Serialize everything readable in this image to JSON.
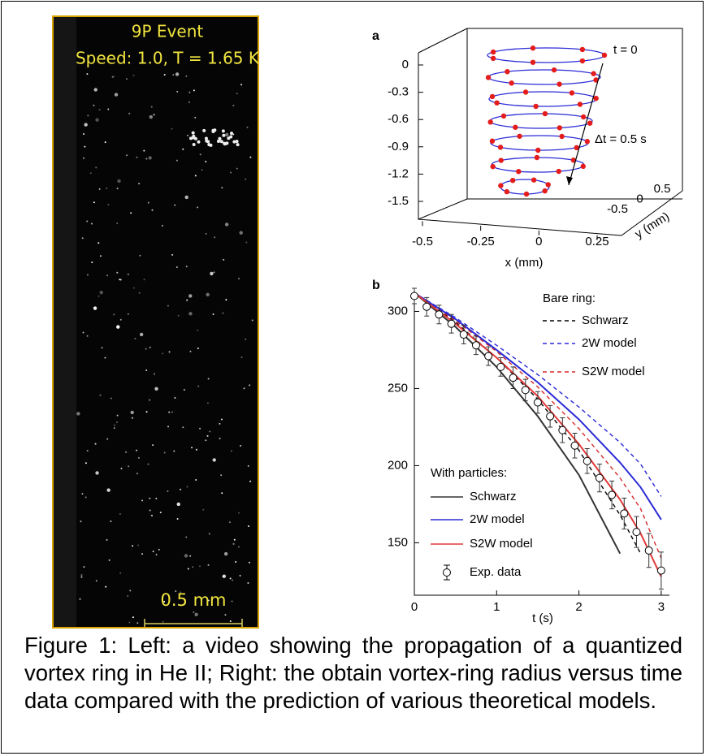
{
  "video": {
    "title": "9P Event",
    "subtitle": "Speed: 1.0, T = 1.65 K",
    "scale_label": "0.5 mm"
  },
  "panel_a": {
    "label": "a",
    "zticks": [
      0,
      -0.3,
      -0.6,
      -0.9,
      -1.2,
      -1.5
    ],
    "xticks": [
      -0.5,
      -0.25,
      0,
      0.25
    ],
    "yticks": [
      -0.5,
      0,
      0.5
    ],
    "xlabel": "x (mm)",
    "ylabel": "y (mm)",
    "annotation_start": "t = 0",
    "annotation_step": "Δt = 0.5 s"
  },
  "chart_data": {
    "type": "line",
    "label": "b",
    "xlabel": "t (s)",
    "x": [
      0,
      0.5,
      1,
      1.5,
      2,
      2.5,
      2.75,
      3
    ],
    "xlim": [
      0,
      3.1
    ],
    "ylim": [
      116,
      315
    ],
    "xticks": [
      0,
      1,
      2,
      3
    ],
    "yticks": [
      150,
      200,
      250,
      300
    ],
    "legend_groups": [
      "Bare ring:",
      "With particles:"
    ],
    "series": [
      {
        "name": "Schwarz",
        "color": "#000000",
        "dashed": true,
        "group": 0,
        "values": [
          312,
          293,
          270,
          243,
          210,
          168,
          143,
          null
        ]
      },
      {
        "name": "2W model",
        "color": "#2a2ad6",
        "dashed": true,
        "group": 0,
        "values": [
          312,
          296,
          278,
          259,
          238,
          215,
          201,
          180
        ]
      },
      {
        "name": "S2W model",
        "color": "#d62a2a",
        "dashed": true,
        "group": 0,
        "values": [
          312,
          294,
          274,
          251,
          224,
          192,
          172,
          140
        ]
      },
      {
        "name": "Schwarz",
        "color": "#333333",
        "dashed": false,
        "group": 1,
        "values": [
          312,
          290,
          264,
          232,
          194,
          143,
          null,
          null
        ]
      },
      {
        "name": "2W model",
        "color": "#2a2ad6",
        "dashed": false,
        "group": 1,
        "values": [
          312,
          295,
          275,
          254,
          230,
          202,
          186,
          165
        ]
      },
      {
        "name": "S2W model",
        "color": "#e23a3a",
        "dashed": false,
        "group": 1,
        "values": [
          312,
          292,
          270,
          245,
          214,
          178,
          156,
          128
        ]
      }
    ],
    "exp": {
      "name": "Exp. data",
      "color": "#000000",
      "x": [
        0,
        0.15,
        0.3,
        0.45,
        0.6,
        0.75,
        0.9,
        1.05,
        1.2,
        1.35,
        1.5,
        1.65,
        1.8,
        1.95,
        2.1,
        2.25,
        2.4,
        2.55,
        2.7,
        2.85,
        3.0
      ],
      "values": [
        310,
        303,
        298,
        292,
        285,
        278,
        271,
        264,
        257,
        249,
        241,
        232,
        223,
        213,
        203,
        192,
        181,
        169,
        157,
        145,
        132
      ],
      "errors": [
        5,
        6,
        6,
        6,
        6,
        6,
        6,
        6,
        7,
        7,
        7,
        7,
        8,
        8,
        8,
        9,
        9,
        10,
        10,
        11,
        12
      ]
    }
  },
  "caption": "Figure 1: Left: a video showing the propagation of a quantized vortex ring in He II; Right: the obtain vortex-ring radius versus time data compared with the prediction of various theoretical models."
}
